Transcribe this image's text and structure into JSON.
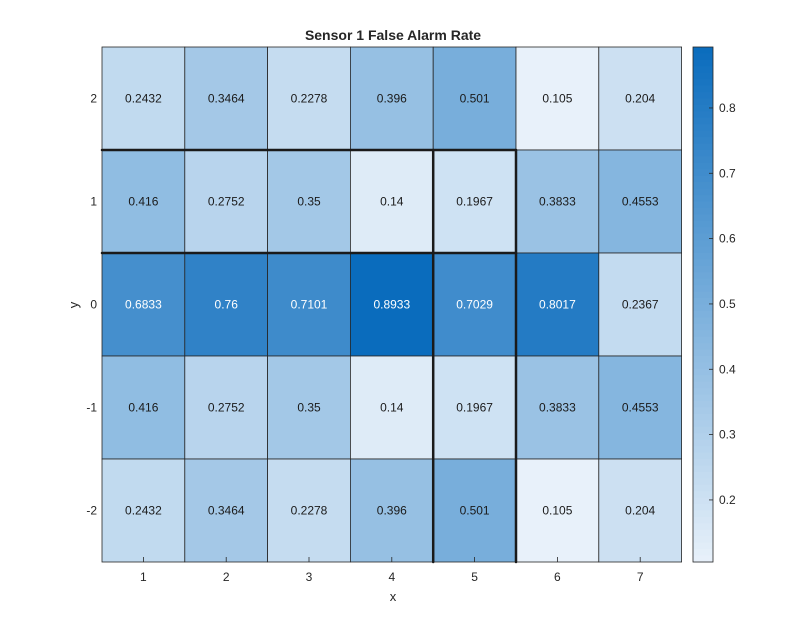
{
  "chart_data": {
    "type": "heatmap",
    "title": "Sensor 1 False Alarm Rate",
    "xlabel": "x",
    "ylabel": "y",
    "x": [
      "1",
      "2",
      "3",
      "4",
      "5",
      "6",
      "7"
    ],
    "y": [
      "2",
      "1",
      "0",
      "-1",
      "-2"
    ],
    "values": [
      [
        "0.2432",
        "0.3464",
        "0.2278",
        "0.396",
        "0.501",
        "0.105",
        "0.204"
      ],
      [
        "0.416",
        "0.2752",
        "0.35",
        "0.14",
        "0.1967",
        "0.3833",
        "0.4553"
      ],
      [
        "0.6833",
        "0.76",
        "0.7101",
        "0.8933",
        "0.7029",
        "0.8017",
        "0.2367"
      ],
      [
        "0.416",
        "0.2752",
        "0.35",
        "0.14",
        "0.1967",
        "0.3833",
        "0.4553"
      ],
      [
        "0.2432",
        "0.3464",
        "0.2278",
        "0.396",
        "0.501",
        "0.105",
        "0.204"
      ]
    ],
    "colorbar": {
      "ticks": [
        "0.2",
        "0.3",
        "0.4",
        "0.5",
        "0.6",
        "0.7",
        "0.8"
      ],
      "range": [
        0.105,
        0.8933
      ],
      "colormap_low": "#e8f1fa",
      "colormap_high": "#0a6cbd"
    },
    "highlight_lines": [
      {
        "from": [
          0.5,
          1.5
        ],
        "to": [
          5.5,
          1.5
        ]
      },
      {
        "from": [
          0.5,
          0.5
        ],
        "to": [
          5.5,
          0.5
        ]
      },
      {
        "from": [
          4.5,
          1.5
        ],
        "to": [
          4.5,
          -2.5
        ]
      },
      {
        "from": [
          5.5,
          1.5
        ],
        "to": [
          5.5,
          -2.5
        ]
      }
    ]
  }
}
